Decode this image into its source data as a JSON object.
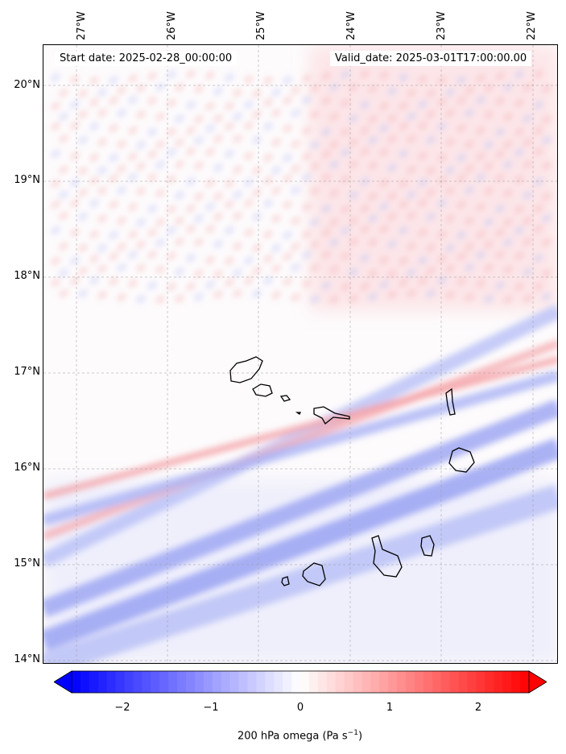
{
  "header": {
    "start_date": "Start date: 2025-02-28_00:00:00",
    "valid_date": "Valid_date: 2025-03-01T17:00:00.00"
  },
  "axes": {
    "lon_labels": [
      "27°W",
      "26°W",
      "25°W",
      "24°W",
      "23°W",
      "22°W"
    ],
    "lat_labels": [
      "20°N",
      "19°N",
      "18°N",
      "17°N",
      "16°N",
      "15°N",
      "14°N"
    ]
  },
  "colorbar": {
    "ticks": [
      "−2",
      "−1",
      "0",
      "1",
      "2"
    ],
    "label_main": "200 hPa omega (Pa s",
    "label_sup": "−1",
    "label_end": ")",
    "range": [
      -2.6,
      2.6
    ],
    "colors": {
      "min": "#0000ff",
      "mid": "#ffffff",
      "max": "#ff0000"
    }
  },
  "chart_data": {
    "type": "heatmap",
    "variable": "200 hPa omega",
    "units": "Pa s−1",
    "lon_range": [
      -27.3,
      -21.8
    ],
    "lat_range": [
      13.95,
      20.45
    ],
    "value_range": [
      -2.6,
      2.6
    ]
  }
}
